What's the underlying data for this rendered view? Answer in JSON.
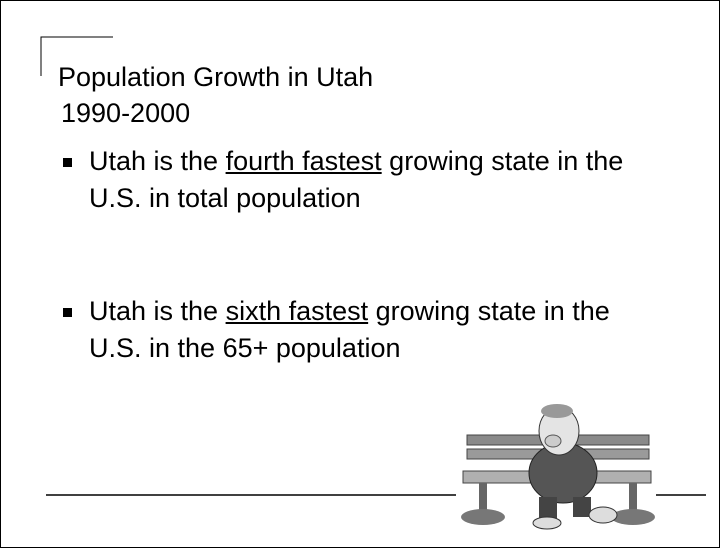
{
  "header": {
    "title": "Population Growth in Utah",
    "subtitle": "1990-2000"
  },
  "bullets": [
    {
      "before": "Utah is the ",
      "emphasis": "fourth fastest",
      "after": " growing state in the U.S. in total population"
    },
    {
      "before": "Utah is the ",
      "emphasis": "sixth fastest",
      "after": " growing state in the U.S. in the 65+ population"
    }
  ]
}
